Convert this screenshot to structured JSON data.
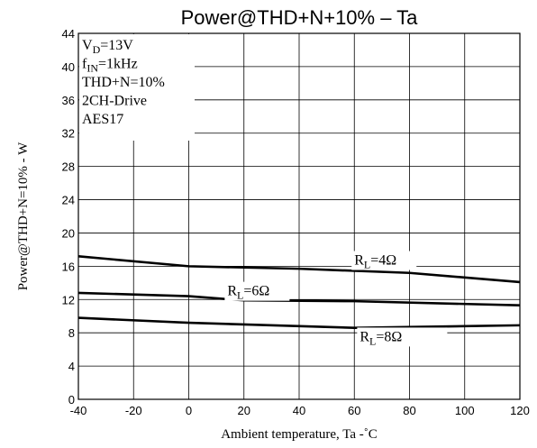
{
  "chart_data": {
    "type": "line",
    "title": "Power@THD+N+10%  –  Ta",
    "xlabel": "Ambient temperature, Ta  -˚C",
    "ylabel": "Power@THD+N=10%  - W",
    "xlim": [
      -40,
      120
    ],
    "ylim": [
      0,
      44
    ],
    "xticks": [
      -40,
      -20,
      0,
      20,
      40,
      60,
      80,
      100,
      120
    ],
    "yticks": [
      0,
      4,
      8,
      12,
      16,
      20,
      24,
      28,
      32,
      36,
      40,
      44
    ],
    "grid": true,
    "annotation": [
      {
        "main": "V",
        "sub": "D",
        "rest": "=13V"
      },
      {
        "main": "f",
        "sub": "IN",
        "rest": "=1kHz"
      },
      {
        "main": "THD+N=10%",
        "sub": "",
        "rest": ""
      },
      {
        "main": "2CH-Drive",
        "sub": "",
        "rest": ""
      },
      {
        "main": "AES17",
        "sub": "",
        "rest": ""
      }
    ],
    "series": [
      {
        "name": "RL=4Ω",
        "label_main": "R",
        "label_sub": "L",
        "label_rest": "=4Ω",
        "x": [
          -40,
          0,
          40,
          80,
          120
        ],
        "y": [
          17.2,
          16.0,
          15.7,
          15.2,
          14.1
        ]
      },
      {
        "name": "RL=6Ω",
        "label_main": "R",
        "label_sub": "L",
        "label_rest": "=6Ω",
        "x": [
          -40,
          0,
          20,
          60,
          120
        ],
        "y": [
          12.8,
          12.4,
          11.9,
          11.8,
          11.3
        ]
      },
      {
        "name": "RL=8Ω",
        "label_main": "R",
        "label_sub": "L",
        "label_rest": "=8Ω",
        "x": [
          -40,
          0,
          20,
          60,
          120
        ],
        "y": [
          9.8,
          9.2,
          9.0,
          8.6,
          8.9
        ]
      }
    ]
  }
}
